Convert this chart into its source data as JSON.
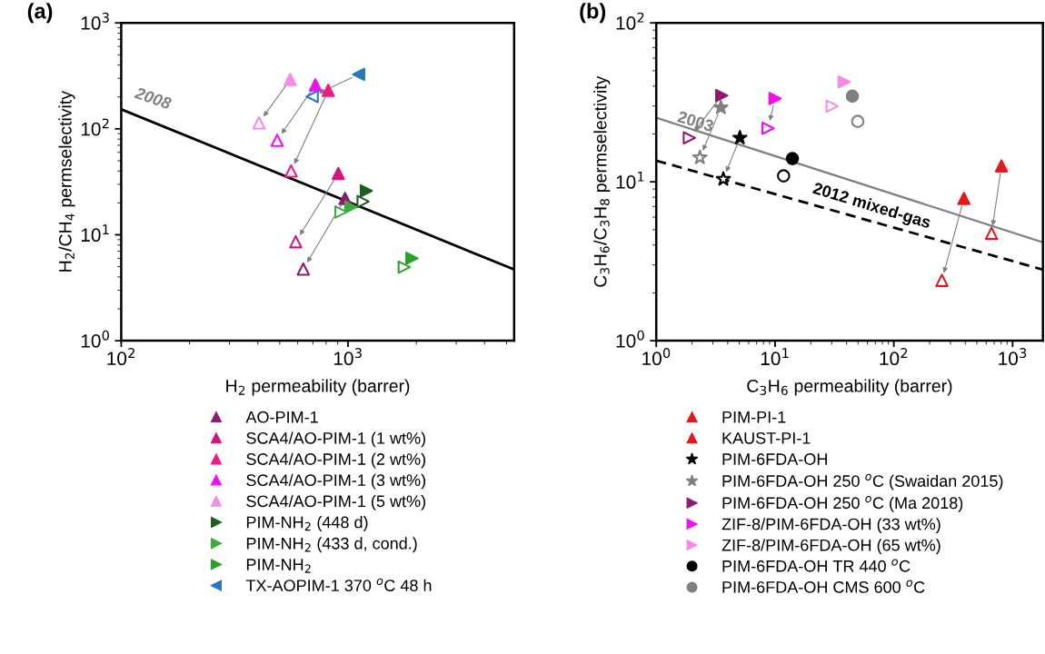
{
  "chart_data": [
    {
      "type": "scatter",
      "title": "(a)",
      "xlabel": "H$_{2}$ permeability (barrer)",
      "ylabel": "H$_{2}$/CH$_{4}$ permselectivity",
      "log": "xy",
      "xlim": [
        100,
        5400
      ],
      "ylim": [
        1,
        1000
      ],
      "xticks": [
        {
          "value": 100,
          "label": "10$^{2}$"
        },
        {
          "value": 1000,
          "label": "10$^{3}$"
        }
      ],
      "yticks": [
        {
          "value": 1,
          "label": "10$^{0}$"
        },
        {
          "value": 10,
          "label": "10$^{1}$"
        },
        {
          "value": 100,
          "label": "10$^{2}$"
        },
        {
          "value": 1000,
          "label": "10$^{3}$"
        }
      ],
      "legend": "bottom",
      "annotations": [
        "2008"
      ],
      "series": [
        {
          "type": "line",
          "color": "#000000",
          "line_style": "solid",
          "marker": "none",
          "x": [
            100,
            5400
          ],
          "values": [
            153,
            4.7
          ]
        },
        {
          "name": "AO-PIM-1",
          "marker": "triangle",
          "color": "#8e1a72",
          "x": [
            970
          ],
          "values": [
            22
          ]
        },
        {
          "marker": "triangle",
          "color": "#8e1a72",
          "x": [
            635
          ],
          "values": [
            4.75
          ]
        },
        {
          "name": "SCA4/AO-PIM-1 (1 wt%)",
          "marker": "triangle",
          "color": "#d4147f",
          "x": [
            906
          ],
          "values": [
            38
          ]
        },
        {
          "marker": "triangle",
          "color": "#d4147f",
          "x": [
            588
          ],
          "values": [
            8.6
          ]
        },
        {
          "name": "SCA4/AO-PIM-1 (2 wt%)",
          "marker": "triangle",
          "color": "#f01c80",
          "x": [
            818
          ],
          "values": [
            231
          ]
        },
        {
          "marker": "triangle",
          "color": "#f01c80",
          "x": [
            561
          ],
          "values": [
            40
          ]
        },
        {
          "name": "SCA4/AO-PIM-1 (3 wt%)",
          "marker": "triangle",
          "color": "#f010f0",
          "x": [
            718
          ],
          "values": [
            260
          ]
        },
        {
          "marker": "triangle",
          "color": "#f010f0",
          "x": [
            487
          ],
          "values": [
            78
          ]
        },
        {
          "name": "SCA4/AO-PIM-1 (5 wt%)",
          "marker": "triangle",
          "color": "#f58ce6",
          "x": [
            556
          ],
          "values": [
            292
          ]
        },
        {
          "marker": "triangle",
          "color": "#f58ce6",
          "x": [
            405
          ],
          "values": [
            114
          ]
        },
        {
          "name": "PIM-NH$_{2}$ (448 d)",
          "marker": "triangle-right",
          "color": "#1f5f1f",
          "x": [
            1205
          ],
          "values": [
            26
          ]
        },
        {
          "marker": "triangle-right",
          "color": "#1f5f1f",
          "x": [
            1166
          ],
          "values": [
            20.6
          ]
        },
        {
          "name": "PIM-NH$_{2}$ (433 d, cond.)",
          "marker": "triangle-right",
          "color": "#3daa3d",
          "x": [
            1031
          ],
          "values": [
            18.3
          ]
        },
        {
          "marker": "triangle-right",
          "color": "#3daa3d",
          "x": [
            931
          ],
          "values": [
            16.4
          ]
        },
        {
          "name": "PIM-NH$_{2}$",
          "marker": "triangle-right",
          "color": "#2ca02c",
          "x": [
            1914
          ],
          "values": [
            6.0
          ]
        },
        {
          "marker": "triangle-right",
          "color": "#2ca02c",
          "x": [
            1770
          ],
          "values": [
            4.95
          ]
        },
        {
          "name": "TX-AOPIM-1 370 $^{o}$C 48 h",
          "marker": "triangle-left",
          "color": "#2878c0",
          "x": [
            1114
          ],
          "values": [
            327
          ]
        },
        {
          "marker": "triangle-left",
          "color": "#2878c0",
          "x": [
            695
          ],
          "values": [
            202
          ]
        }
      ]
    },
    {
      "type": "scatter",
      "title": "(b)",
      "xlabel": "C$_{3}$H$_{6}$ permeability (barrer)",
      "ylabel": "C$_{3}$H$_{6}$/C$_{3}$H$_{8}$ permselectivity",
      "log": "xy",
      "xlim": [
        1,
        1800
      ],
      "ylim": [
        1,
        100
      ],
      "xticks": [
        {
          "value": 1,
          "label": "10$^{0}$"
        },
        {
          "value": 10,
          "label": "10$^{1}$"
        },
        {
          "value": 100,
          "label": "10$^{2}$"
        },
        {
          "value": 1000,
          "label": "10$^{3}$"
        }
      ],
      "yticks": [
        {
          "value": 1,
          "label": "10$^{0}$"
        },
        {
          "value": 10,
          "label": "10$^{1}$"
        },
        {
          "value": 100,
          "label": "10$^{2}$"
        }
      ],
      "legend": "bottom",
      "annotations": [
        "2003",
        "2012 mixed-gas"
      ],
      "series": [
        {
          "type": "line",
          "color": "#808080",
          "line_style": "solid",
          "marker": "none",
          "x": [
            1,
            1800
          ],
          "values": [
            25.3,
            4.16
          ]
        },
        {
          "type": "line",
          "color": "#000000",
          "line_style": "dashed",
          "marker": "none",
          "x": [
            1,
            1800
          ],
          "values": [
            13.6,
            2.8
          ]
        },
        {
          "name": "PIM-PI-1",
          "marker": "triangle",
          "color": "#e31a1c",
          "x": [
            389
          ],
          "values": [
            7.85
          ]
        },
        {
          "marker": "triangle",
          "color": "#e31a1c",
          "x": [
            254
          ],
          "values": [
            2.4
          ]
        },
        {
          "name": "KAUST-PI-1",
          "marker": "triangle",
          "color": "#e31a1c",
          "x": [
            806
          ],
          "values": [
            12.6
          ]
        },
        {
          "marker": "triangle",
          "color": "#e31a1c",
          "x": [
            665
          ],
          "values": [
            4.74
          ]
        },
        {
          "name": "PIM-6FDA-OH",
          "marker": "star",
          "color": "#000000",
          "x": [
            5.06
          ],
          "values": [
            18.9
          ]
        },
        {
          "marker": "star",
          "color": "#000000",
          "x": [
            3.67
          ],
          "values": [
            10.4
          ]
        },
        {
          "name": "PIM-6FDA-OH 250 $^{o}$C (Swaidan 2015)",
          "marker": "star",
          "color": "#808080",
          "x": [
            3.5
          ],
          "values": [
            29.3
          ]
        },
        {
          "marker": "star",
          "color": "#808080",
          "x": [
            2.33
          ],
          "values": [
            14.2
          ]
        },
        {
          "name": "PIM-6FDA-OH 250 $^{o}$C (Ma 2018)",
          "marker": "triangle-right",
          "color": "#8e1a72",
          "x": [
            3.56
          ],
          "values": [
            34.9
          ]
        },
        {
          "marker": "triangle-right",
          "color": "#8e1a72",
          "x": [
            1.9
          ],
          "values": [
            18.9
          ]
        },
        {
          "name": "ZIF-8/PIM-6FDA-OH (33 wt%)",
          "marker": "triangle-right",
          "color": "#f010f0",
          "x": [
            10
          ],
          "values": [
            33.4
          ]
        },
        {
          "marker": "triangle-right",
          "color": "#f010f0",
          "x": [
            8.74
          ],
          "values": [
            21.7
          ]
        },
        {
          "name": "ZIF-8/PIM-6FDA-OH (65 wt%)",
          "marker": "triangle-right",
          "color": "#f58ce6",
          "x": [
            38.2
          ],
          "values": [
            42.5
          ]
        },
        {
          "marker": "triangle-right",
          "color": "#f58ce6",
          "x": [
            30.3
          ],
          "values": [
            29.9
          ]
        },
        {
          "name": "PIM-6FDA-OH TR 440 $^{o}$C",
          "marker": "circle",
          "color": "#000000",
          "x": [
            14.0
          ],
          "values": [
            14.0
          ]
        },
        {
          "marker": "circle",
          "color": "#000000",
          "x": [
            11.8
          ],
          "values": [
            10.9
          ]
        },
        {
          "name": "PIM-6FDA-OH CMS 600 $^{o}$C",
          "marker": "circle",
          "color": "#808080",
          "x": [
            44.8
          ],
          "values": [
            34.6
          ]
        },
        {
          "marker": "circle",
          "color": "#808080",
          "x": [
            49.7
          ],
          "values": [
            24.0
          ]
        }
      ]
    }
  ]
}
